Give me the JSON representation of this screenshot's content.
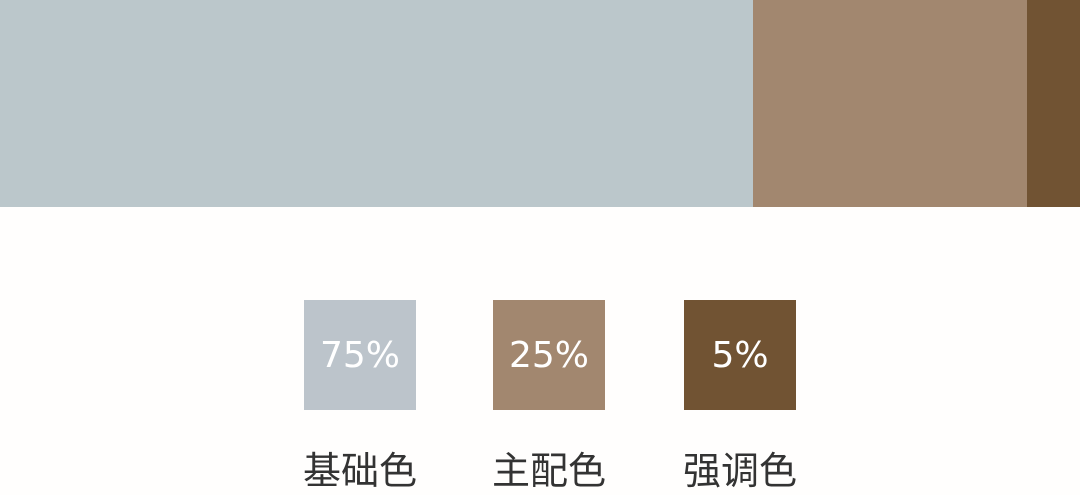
{
  "colors": {
    "base": "#bbc7cb",
    "main": "#a2876f",
    "accent": "#715333",
    "base_swatch": "#bcc4cb"
  },
  "swatches": [
    {
      "percent": "75%",
      "label": "基础色"
    },
    {
      "percent": "25%",
      "label": "主配色"
    },
    {
      "percent": "5%",
      "label": "强调色"
    }
  ]
}
